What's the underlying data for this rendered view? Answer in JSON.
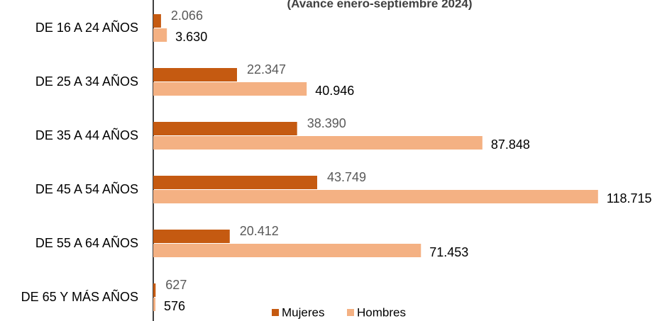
{
  "chart_data": {
    "type": "barh",
    "subtitle": "(Avance enero-septiembre 2024)",
    "categories": [
      "DE 16 A 24 AÑOS",
      "DE 25 A 34 AÑOS",
      "DE 35 A 44 AÑOS",
      "DE 45 A 54 AÑOS",
      "DE 55 A 64 AÑOS",
      "DE 65 Y MÁS AÑOS"
    ],
    "series": [
      {
        "name": "Mujeres",
        "color": "#c55a11",
        "values": [
          2066,
          22347,
          38390,
          43749,
          20412,
          627
        ],
        "value_labels": [
          "2.066",
          "22.347",
          "38.390",
          "43.749",
          "20.412",
          "627"
        ]
      },
      {
        "name": "Hombres",
        "color": "#f4b183",
        "values": [
          3630,
          40946,
          87848,
          118715,
          71453,
          576
        ],
        "value_labels": [
          "3.630",
          "40.946",
          "87.848",
          "118.715",
          "71.453",
          "576"
        ]
      }
    ],
    "xlim": [
      0,
      125000
    ]
  }
}
